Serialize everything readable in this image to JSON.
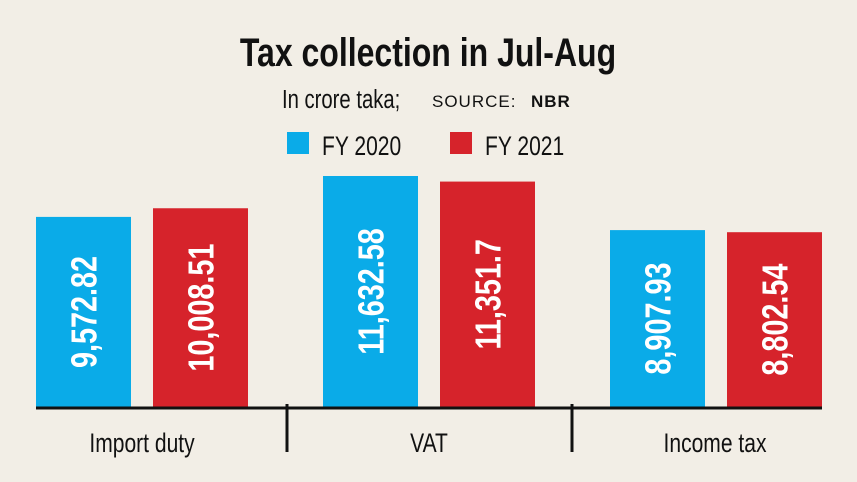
{
  "chart_data": {
    "type": "bar",
    "title": "Tax collection in Jul-Aug",
    "subtitle": "In crore taka;",
    "source_label": "SOURCE:",
    "source_name": "NBR",
    "categories": [
      "Import duty",
      "VAT",
      "Income tax"
    ],
    "series": [
      {
        "name": "FY 2020",
        "color": "#0aabe8",
        "values": [
          9572.82,
          11632.58,
          8907.93
        ],
        "labels": [
          "9,572.82",
          "11,632.58",
          "8,907.93"
        ]
      },
      {
        "name": "FY 2021",
        "color": "#d6232b",
        "values": [
          10008.51,
          11351.7,
          8802.54
        ],
        "labels": [
          "10,008.51",
          "11,351.7",
          "8,802.54"
        ]
      }
    ],
    "ylim": [
      0,
      11632.58
    ],
    "grid": false,
    "legend_position": "top-center",
    "xlabel": "",
    "ylabel": ""
  }
}
